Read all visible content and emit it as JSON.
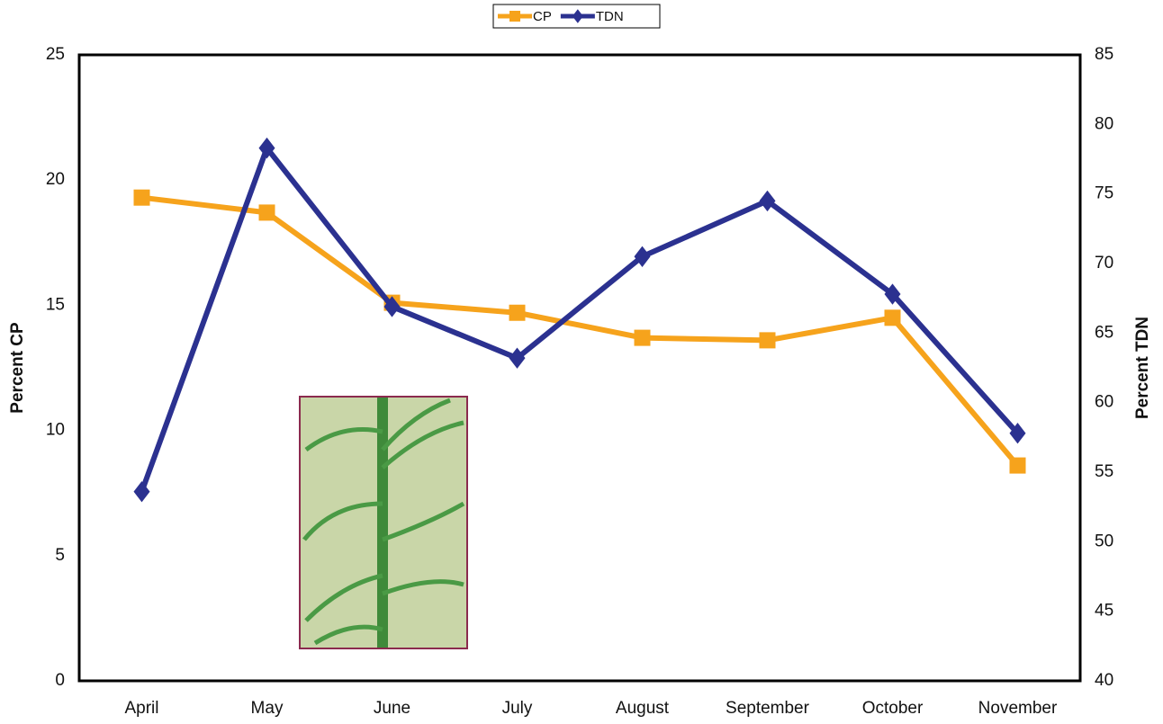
{
  "chart_data": {
    "type": "line",
    "categories": [
      "April",
      "May",
      "June",
      "July",
      "August",
      "September",
      "October",
      "November"
    ],
    "series": [
      {
        "name": "CP",
        "color": "#f6a31c",
        "marker": "square",
        "axis": "y",
        "values": [
          19.3,
          18.7,
          15.1,
          14.7,
          13.7,
          13.6,
          14.5,
          8.6
        ]
      },
      {
        "name": "TDN",
        "color": "#2b3190",
        "marker": "diamond",
        "axis": "y2",
        "values": [
          53.6,
          78.3,
          66.9,
          63.2,
          70.5,
          74.5,
          67.8,
          57.8
        ]
      }
    ],
    "y_label": "Percent CP",
    "y2_label": "Percent TDN",
    "ylim": [
      0,
      25
    ],
    "yticks": [
      0,
      5,
      10,
      15,
      20,
      25
    ],
    "y2lim": [
      40,
      85
    ],
    "y2ticks": [
      40,
      45,
      50,
      55,
      60,
      65,
      70,
      75,
      80,
      85
    ],
    "legend": "top"
  }
}
